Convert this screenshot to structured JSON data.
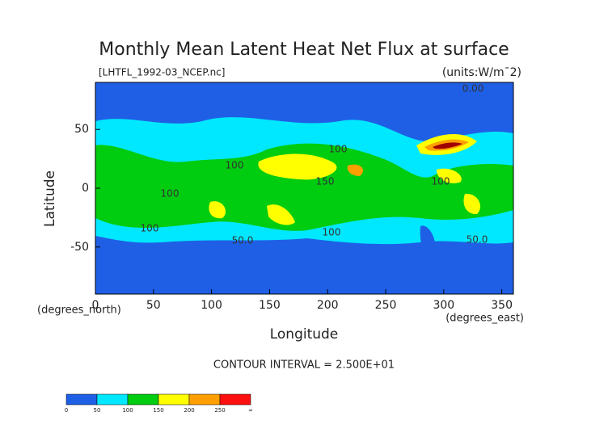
{
  "chart_data": {
    "type": "contour",
    "title": "Monthly Mean Latent Heat Net Flux at surface",
    "subtitle": "[LHTFL_1992-03_NCEP.nc]",
    "units": "(units:W/m¯2)",
    "x_label": "Longitude",
    "y_label": "Latitude",
    "x_units": "(degrees_east)",
    "y_units": "(degrees_north)",
    "xlim": [
      0,
      360
    ],
    "xticks": [
      0,
      50,
      100,
      150,
      200,
      250,
      300,
      350
    ],
    "ylim": [
      -90,
      90
    ],
    "yticks": [
      -50,
      0,
      50
    ],
    "footer": "CONTOUR INTERVAL = 2.500E+01",
    "contour_labels": [
      "100",
      "100",
      "100",
      "150",
      "100",
      "100",
      "50.0",
      "100",
      "50.0",
      "0.00"
    ],
    "colorbar": {
      "labels": [
        "0",
        "50",
        "100",
        "150",
        "200",
        "250",
        "∞"
      ],
      "colors": [
        "#1f5fe6",
        "#00e8ff",
        "#00cc10",
        "#ffff00",
        "#ffa000",
        "#ff1010"
      ]
    }
  }
}
